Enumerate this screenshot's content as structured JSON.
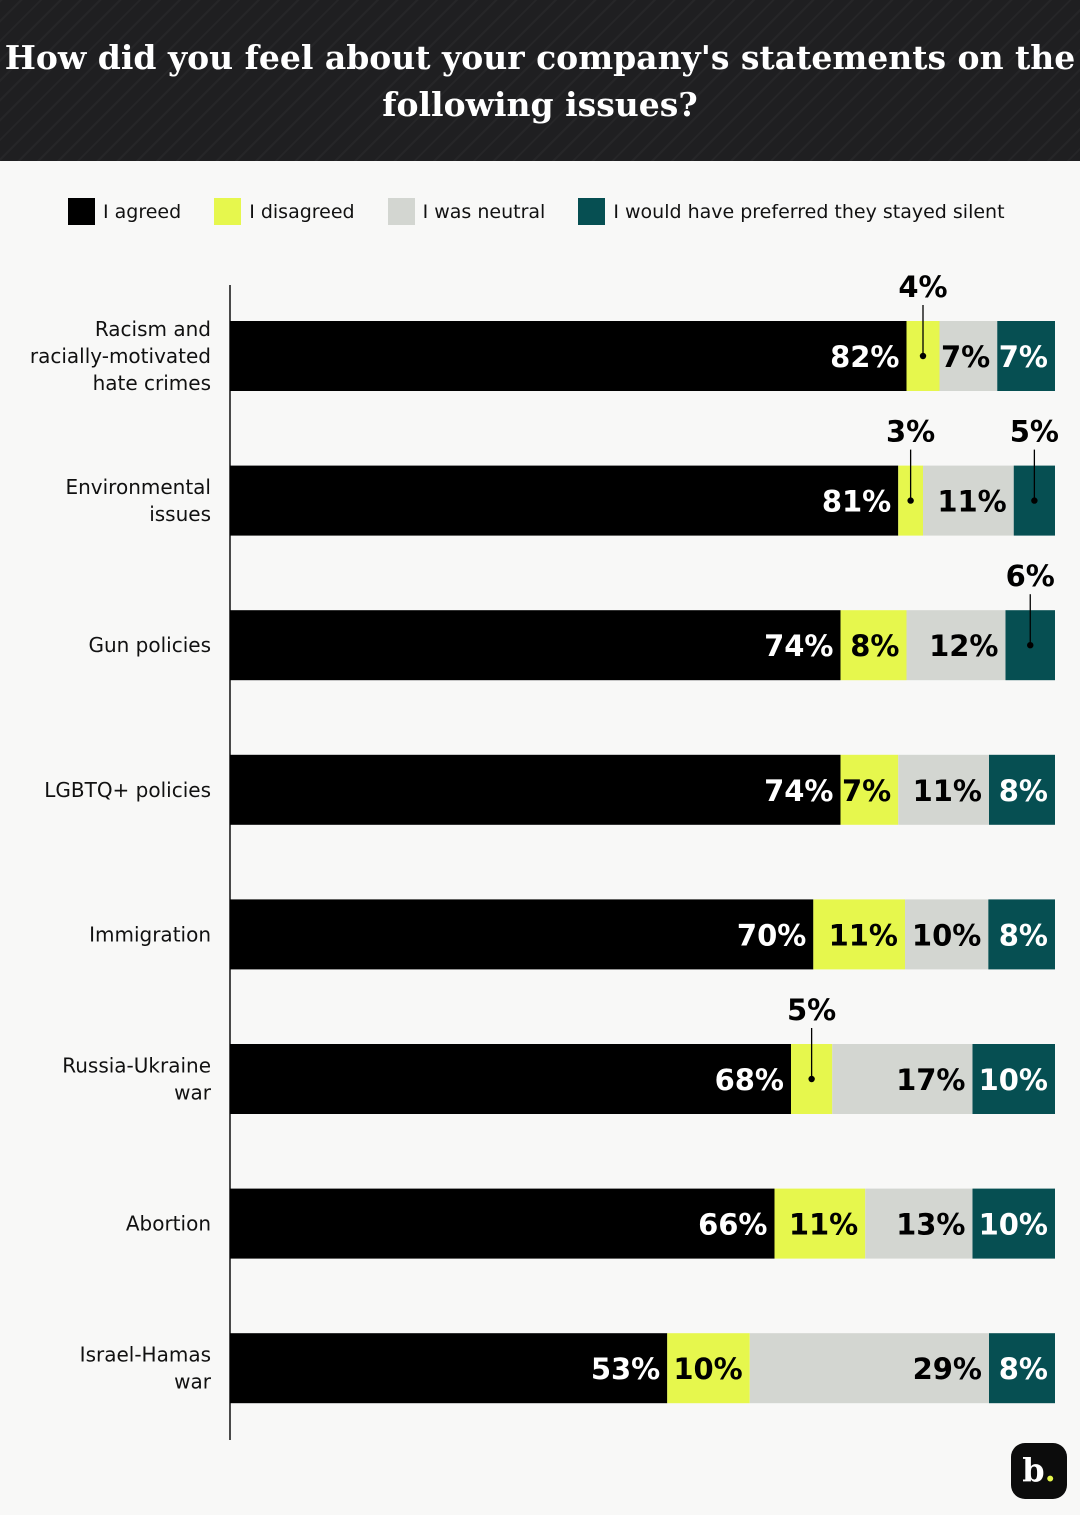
{
  "title": "How did you feel about your company's statements on the following issues?",
  "colors": {
    "agreed": "#000000",
    "disagreed": "#e6f74d",
    "neutral": "#d3d6d1",
    "silent": "#064f52"
  },
  "chart_data": {
    "type": "bar",
    "orientation": "horizontal",
    "stacked": true,
    "title": "How did you feel about your company's statements on the following issues?",
    "legend_position": "top",
    "categories": [
      "Racism and racially-motivated hate crimes",
      "Environmental issues",
      "Gun policies",
      "LGBTQ+ policies",
      "Immigration",
      "Russia-Ukraine war",
      "Abortion",
      "Israel-Hamas war"
    ],
    "category_lines": [
      [
        "Racism and",
        "racially-motivated",
        "hate crimes"
      ],
      [
        "Environmental",
        "issues"
      ],
      [
        "Gun policies"
      ],
      [
        "LGBTQ+ policies"
      ],
      [
        "Immigration"
      ],
      [
        "Russia-Ukraine",
        "war"
      ],
      [
        "Abortion"
      ],
      [
        "Israel-Hamas",
        "war"
      ]
    ],
    "series": [
      {
        "name": "I agreed",
        "key": "agreed",
        "values": [
          82,
          81,
          74,
          74,
          70,
          68,
          66,
          53
        ]
      },
      {
        "name": "I disagreed",
        "key": "disagreed",
        "values": [
          4,
          3,
          8,
          7,
          11,
          5,
          11,
          10
        ]
      },
      {
        "name": "I was neutral",
        "key": "neutral",
        "values": [
          7,
          11,
          12,
          11,
          10,
          17,
          13,
          29
        ]
      },
      {
        "name": "I would have preferred they stayed silent",
        "key": "silent",
        "values": [
          7,
          5,
          6,
          8,
          8,
          10,
          10,
          8
        ]
      }
    ],
    "unit": "%"
  },
  "logo": {
    "text": "b",
    "dot": "."
  }
}
